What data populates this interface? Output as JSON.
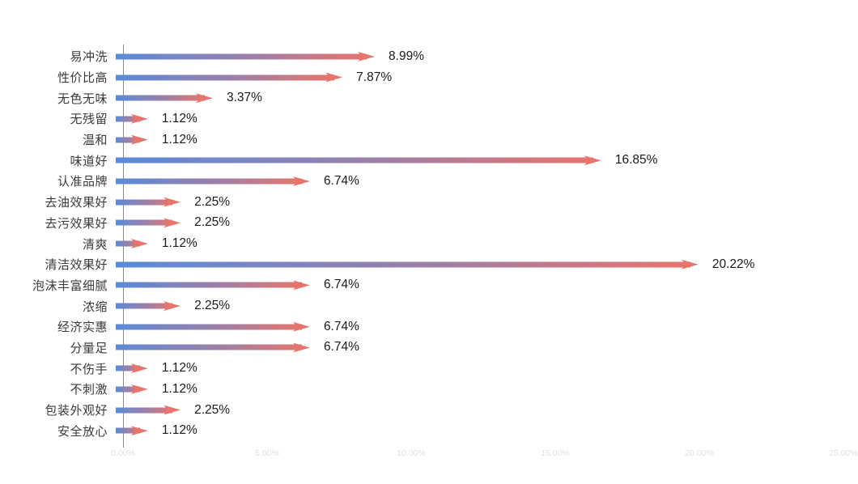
{
  "page": {
    "background": "#ffffff"
  },
  "chart_data": {
    "type": "bar",
    "orientation": "horizontal",
    "title": "",
    "xlabel": "",
    "ylabel": "",
    "categories": [
      "易冲洗",
      "性价比高",
      "无色无味",
      "无残留",
      "温和",
      "味道好",
      "认准品牌",
      "去油效果好",
      "去污效果好",
      "清爽",
      "清洁效果好",
      "泡沫丰富细腻",
      "浓缩",
      "经济实惠",
      "分量足",
      "不伤手",
      "不刺激",
      "包装外观好",
      "安全放心"
    ],
    "values": [
      8.99,
      7.87,
      3.37,
      1.12,
      1.12,
      16.85,
      6.74,
      2.25,
      2.25,
      1.12,
      20.22,
      6.74,
      2.25,
      6.74,
      6.74,
      1.12,
      1.12,
      2.25,
      1.12
    ],
    "value_labels": [
      "8.99%",
      "7.87%",
      "3.37%",
      "1.12%",
      "1.12%",
      "16.85%",
      "6.74%",
      "2.25%",
      "2.25%",
      "1.12%",
      "20.22%",
      "6.74%",
      "2.25%",
      "6.74%",
      "6.74%",
      "1.12%",
      "1.12%",
      "2.25%",
      "1.12%"
    ],
    "x_ticks": [
      "0.00%",
      "5.00%",
      "10.00%",
      "15.00%",
      "20.00%",
      "25.00%"
    ],
    "x_tick_values": [
      0,
      5,
      10,
      15,
      20,
      25
    ],
    "xlim": [
      0,
      25
    ],
    "grid": "off",
    "legend_position": "none",
    "colors": {
      "bar_gradient_start": "#5a8bd8",
      "bar_gradient_mid": "#9d7fa8",
      "bar_gradient_end": "#e7756c",
      "arrow_head": "#e8746c",
      "category_label": "#3b3b3b",
      "value_label": "#1a1a1a",
      "axis_line": "#8a8a8a",
      "x_tick_label": "#e0e0e0"
    }
  }
}
